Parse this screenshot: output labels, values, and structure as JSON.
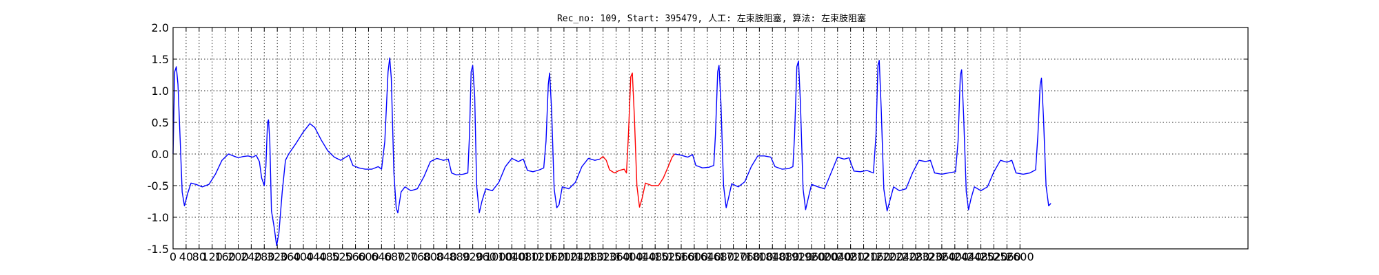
{
  "chart_data": {
    "type": "line",
    "title": "Rec_no: 109, Start: 395479, 人工: 左束肢阻塞, 算法: 左束肢阻塞",
    "xlabel": "",
    "ylabel": "",
    "xlim": [
      0,
      3300
    ],
    "ylim": [
      -1.5,
      2.0
    ],
    "grid": true,
    "y_ticks": [
      "2.0",
      "1.5",
      "1.0",
      "0.5",
      "0.0",
      "-0.5",
      "-1.0",
      "-1.5"
    ],
    "y_tick_values": [
      2.0,
      1.5,
      1.0,
      0.5,
      0.0,
      -0.5,
      -1.0,
      -1.5
    ],
    "x_tick_values": [
      0,
      40,
      80,
      120,
      160,
      200,
      240,
      280,
      320,
      360,
      400,
      440,
      480,
      520,
      560,
      600,
      640,
      680,
      720,
      760,
      800,
      840,
      880,
      920,
      960,
      1000,
      1040,
      1080,
      1120,
      1160,
      1200,
      1240,
      1280,
      1320,
      1360,
      1400,
      1440,
      1480,
      1520,
      1560,
      1600,
      1640,
      1680,
      1720,
      1760,
      1800,
      1840,
      1880,
      1920,
      1960,
      2000,
      2040,
      2080,
      2120,
      2160,
      2200,
      2240,
      2280,
      2320,
      2360,
      2400,
      2440,
      2480,
      2520,
      2560,
      2600
    ],
    "x_ticks": [
      "0",
      "40",
      "80",
      "120",
      "160",
      "200",
      "240",
      "280",
      "320",
      "360",
      "400",
      "440",
      "480",
      "520",
      "560",
      "600",
      "640",
      "680",
      "720",
      "760",
      "800",
      "840",
      "880",
      "920",
      "960",
      "1000",
      "1040",
      "1080",
      "1120",
      "1160",
      "1200",
      "1240",
      "1280",
      "1320",
      "1360",
      "1400",
      "1440",
      "1480",
      "1520",
      "1560",
      "1600",
      "1640",
      "1680",
      "1720",
      "1760",
      "1800",
      "1840",
      "1880",
      "1920",
      "1960",
      "2000",
      "2040",
      "2080",
      "2120",
      "2160",
      "2200",
      "2240",
      "2280",
      "2320",
      "2360",
      "2400",
      "2440",
      "2480",
      "2520",
      "2560",
      "2600"
    ],
    "series": [
      {
        "color": "#0000ff",
        "points": [
          [
            0,
            0.0
          ],
          [
            5,
            1.3
          ],
          [
            10,
            1.38
          ],
          [
            15,
            1.1
          ],
          [
            22,
            0.2
          ],
          [
            28,
            -0.6
          ],
          [
            35,
            -0.82
          ],
          [
            45,
            -0.62
          ],
          [
            55,
            -0.46
          ],
          [
            70,
            -0.48
          ],
          [
            90,
            -0.52
          ],
          [
            110,
            -0.48
          ],
          [
            130,
            -0.32
          ],
          [
            150,
            -0.1
          ],
          [
            170,
            0.0
          ],
          [
            190,
            -0.04
          ],
          [
            200,
            -0.06
          ],
          [
            215,
            -0.04
          ],
          [
            230,
            -0.03
          ],
          [
            245,
            -0.05
          ],
          [
            255,
            -0.02
          ],
          [
            265,
            -0.12
          ],
          [
            272,
            -0.38
          ],
          [
            280,
            -0.5
          ],
          [
            285,
            -0.2
          ],
          [
            290,
            0.5
          ],
          [
            293,
            0.54
          ],
          [
            297,
            0.2
          ],
          [
            302,
            -0.9
          ],
          [
            310,
            -1.15
          ],
          [
            318,
            -1.45
          ],
          [
            325,
            -1.25
          ],
          [
            335,
            -0.6
          ],
          [
            345,
            -0.1
          ],
          [
            355,
            0.0
          ],
          [
            375,
            0.15
          ],
          [
            400,
            0.35
          ],
          [
            420,
            0.48
          ],
          [
            435,
            0.42
          ],
          [
            455,
            0.22
          ],
          [
            475,
            0.05
          ],
          [
            495,
            -0.05
          ],
          [
            515,
            -0.1
          ],
          [
            530,
            -0.05
          ],
          [
            540,
            -0.02
          ],
          [
            552,
            -0.18
          ],
          [
            570,
            -0.22
          ],
          [
            590,
            -0.24
          ],
          [
            610,
            -0.24
          ],
          [
            630,
            -0.2
          ],
          [
            640,
            -0.24
          ],
          [
            650,
            0.2
          ],
          [
            660,
            1.3
          ],
          [
            665,
            1.52
          ],
          [
            670,
            1.2
          ],
          [
            678,
            -0.3
          ],
          [
            685,
            -0.85
          ],
          [
            690,
            -0.93
          ],
          [
            700,
            -0.6
          ],
          [
            712,
            -0.52
          ],
          [
            730,
            -0.58
          ],
          [
            750,
            -0.55
          ],
          [
            770,
            -0.36
          ],
          [
            790,
            -0.12
          ],
          [
            810,
            -0.07
          ],
          [
            830,
            -0.1
          ],
          [
            845,
            -0.08
          ],
          [
            855,
            -0.3
          ],
          [
            870,
            -0.33
          ],
          [
            890,
            -0.32
          ],
          [
            905,
            -0.3
          ],
          [
            910,
            0.3
          ],
          [
            915,
            1.3
          ],
          [
            920,
            1.4
          ],
          [
            926,
            0.9
          ],
          [
            932,
            -0.5
          ],
          [
            940,
            -0.93
          ],
          [
            948,
            -0.75
          ],
          [
            960,
            -0.55
          ],
          [
            980,
            -0.58
          ],
          [
            1000,
            -0.45
          ],
          [
            1020,
            -0.2
          ],
          [
            1040,
            -0.07
          ],
          [
            1060,
            -0.12
          ],
          [
            1075,
            -0.08
          ],
          [
            1088,
            -0.26
          ],
          [
            1105,
            -0.28
          ],
          [
            1125,
            -0.25
          ],
          [
            1138,
            -0.22
          ],
          [
            1145,
            0.2
          ],
          [
            1152,
            1.1
          ],
          [
            1156,
            1.28
          ],
          [
            1162,
            0.7
          ],
          [
            1170,
            -0.55
          ],
          [
            1178,
            -0.85
          ],
          [
            1185,
            -0.8
          ],
          [
            1195,
            -0.52
          ],
          [
            1215,
            -0.55
          ],
          [
            1235,
            -0.45
          ],
          [
            1255,
            -0.2
          ],
          [
            1275,
            -0.07
          ],
          [
            1295,
            -0.1
          ],
          [
            1310,
            -0.08
          ]
        ]
      },
      {
        "color": "#ff0000",
        "points": [
          [
            1310,
            -0.08
          ],
          [
            1320,
            -0.04
          ],
          [
            1330,
            -0.1
          ],
          [
            1340,
            -0.25
          ],
          [
            1355,
            -0.3
          ],
          [
            1370,
            -0.26
          ],
          [
            1385,
            -0.24
          ],
          [
            1392,
            -0.3
          ],
          [
            1398,
            0.3
          ],
          [
            1405,
            1.22
          ],
          [
            1410,
            1.28
          ],
          [
            1416,
            0.6
          ],
          [
            1424,
            -0.5
          ],
          [
            1432,
            -0.84
          ],
          [
            1440,
            -0.7
          ],
          [
            1450,
            -0.46
          ],
          [
            1470,
            -0.5
          ],
          [
            1490,
            -0.5
          ],
          [
            1505,
            -0.38
          ],
          [
            1520,
            -0.2
          ],
          [
            1532,
            -0.05
          ],
          [
            1540,
            0.0
          ]
        ]
      },
      {
        "color": "#0000ff",
        "points": [
          [
            1540,
            0.0
          ],
          [
            1560,
            -0.02
          ],
          [
            1580,
            -0.05
          ],
          [
            1595,
            -0.01
          ],
          [
            1605,
            -0.18
          ],
          [
            1625,
            -0.22
          ],
          [
            1645,
            -0.21
          ],
          [
            1660,
            -0.18
          ],
          [
            1665,
            0.3
          ],
          [
            1672,
            1.3
          ],
          [
            1676,
            1.4
          ],
          [
            1682,
            0.8
          ],
          [
            1690,
            -0.5
          ],
          [
            1698,
            -0.85
          ],
          [
            1705,
            -0.7
          ],
          [
            1715,
            -0.47
          ],
          [
            1735,
            -0.52
          ],
          [
            1755,
            -0.44
          ],
          [
            1775,
            -0.2
          ],
          [
            1795,
            -0.03
          ],
          [
            1815,
            -0.03
          ],
          [
            1835,
            -0.05
          ],
          [
            1848,
            -0.2
          ],
          [
            1870,
            -0.24
          ],
          [
            1890,
            -0.23
          ],
          [
            1903,
            -0.2
          ],
          [
            1908,
            0.3
          ],
          [
            1915,
            1.38
          ],
          [
            1920,
            1.47
          ],
          [
            1926,
            0.8
          ],
          [
            1934,
            -0.55
          ],
          [
            1942,
            -0.88
          ],
          [
            1950,
            -0.7
          ],
          [
            1960,
            -0.48
          ],
          [
            1980,
            -0.52
          ],
          [
            2000,
            -0.55
          ],
          [
            2020,
            -0.3
          ],
          [
            2040,
            -0.05
          ],
          [
            2060,
            -0.08
          ],
          [
            2075,
            -0.06
          ],
          [
            2090,
            -0.27
          ],
          [
            2110,
            -0.28
          ],
          [
            2130,
            -0.26
          ],
          [
            2150,
            -0.3
          ],
          [
            2158,
            0.3
          ],
          [
            2164,
            1.4
          ],
          [
            2168,
            1.48
          ],
          [
            2174,
            0.7
          ],
          [
            2182,
            -0.55
          ],
          [
            2192,
            -0.9
          ],
          [
            2200,
            -0.75
          ],
          [
            2212,
            -0.52
          ],
          [
            2230,
            -0.58
          ],
          [
            2250,
            -0.55
          ],
          [
            2270,
            -0.3
          ],
          [
            2290,
            -0.1
          ],
          [
            2310,
            -0.12
          ],
          [
            2325,
            -0.1
          ],
          [
            2338,
            -0.3
          ],
          [
            2360,
            -0.32
          ],
          [
            2380,
            -0.3
          ],
          [
            2402,
            -0.28
          ],
          [
            2410,
            0.2
          ],
          [
            2417,
            1.25
          ],
          [
            2421,
            1.33
          ],
          [
            2427,
            0.6
          ],
          [
            2435,
            -0.6
          ],
          [
            2442,
            -0.88
          ],
          [
            2450,
            -0.7
          ],
          [
            2460,
            -0.52
          ],
          [
            2480,
            -0.58
          ],
          [
            2500,
            -0.52
          ],
          [
            2520,
            -0.28
          ],
          [
            2540,
            -0.1
          ],
          [
            2560,
            -0.13
          ],
          [
            2575,
            -0.1
          ],
          [
            2588,
            -0.3
          ],
          [
            2610,
            -0.32
          ],
          [
            2630,
            -0.3
          ],
          [
            2648,
            -0.25
          ],
          [
            2655,
            0.3
          ],
          [
            2662,
            1.1
          ],
          [
            2666,
            1.2
          ],
          [
            2672,
            0.6
          ],
          [
            2680,
            -0.5
          ],
          [
            2688,
            -0.82
          ],
          [
            2695,
            -0.78
          ]
        ]
      }
    ]
  }
}
